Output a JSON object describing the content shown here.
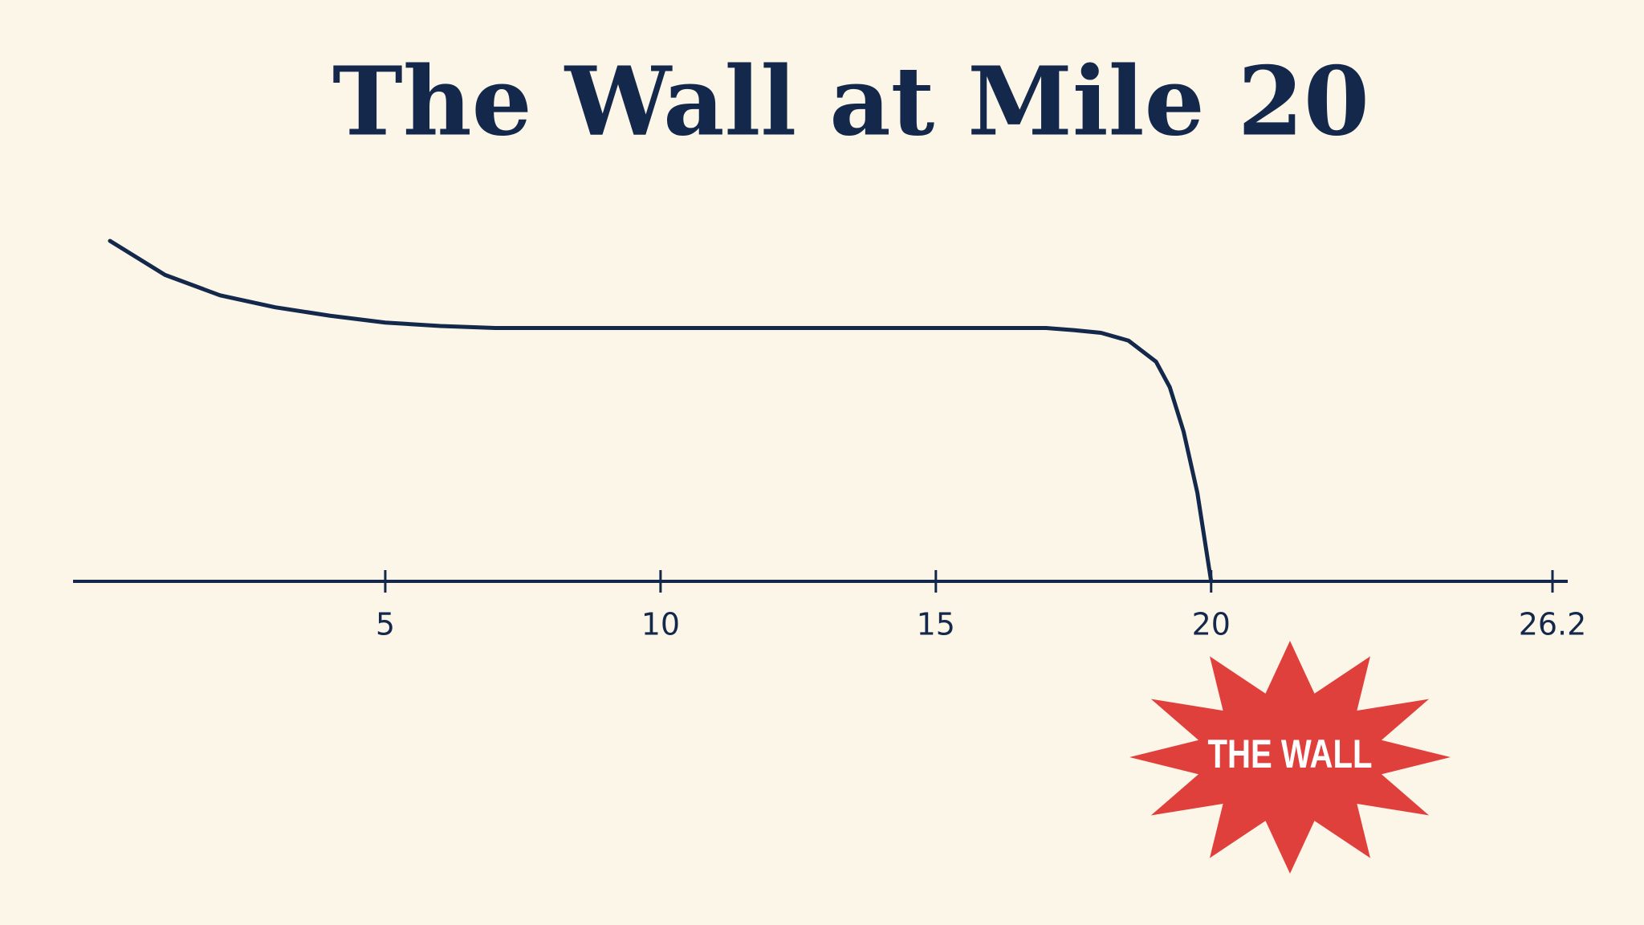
{
  "chart_data": {
    "type": "line",
    "title": "The Wall at Mile 20",
    "x": [
      0,
      1,
      2,
      3,
      4,
      5,
      6,
      7,
      8,
      9,
      10,
      11,
      12,
      13,
      14,
      15,
      16,
      17,
      17.5,
      18,
      18.5,
      19,
      19.25,
      19.5,
      19.75,
      20
    ],
    "y": [
      100,
      90,
      84,
      80.5,
      78,
      76,
      75,
      74.4,
      74.4,
      74.4,
      74.4,
      74.4,
      74.4,
      74.4,
      74.4,
      74.4,
      74.4,
      74.4,
      73.8,
      73,
      70.7,
      64.5,
      57,
      44,
      26,
      0
    ],
    "color": "#13284a",
    "xlim": [
      0,
      26.2
    ],
    "xticks": [
      5,
      10,
      15,
      20,
      26.2
    ],
    "ylim": [
      0,
      100
    ],
    "annotation": "THE WALL",
    "annotation_color": "#e0403c"
  }
}
